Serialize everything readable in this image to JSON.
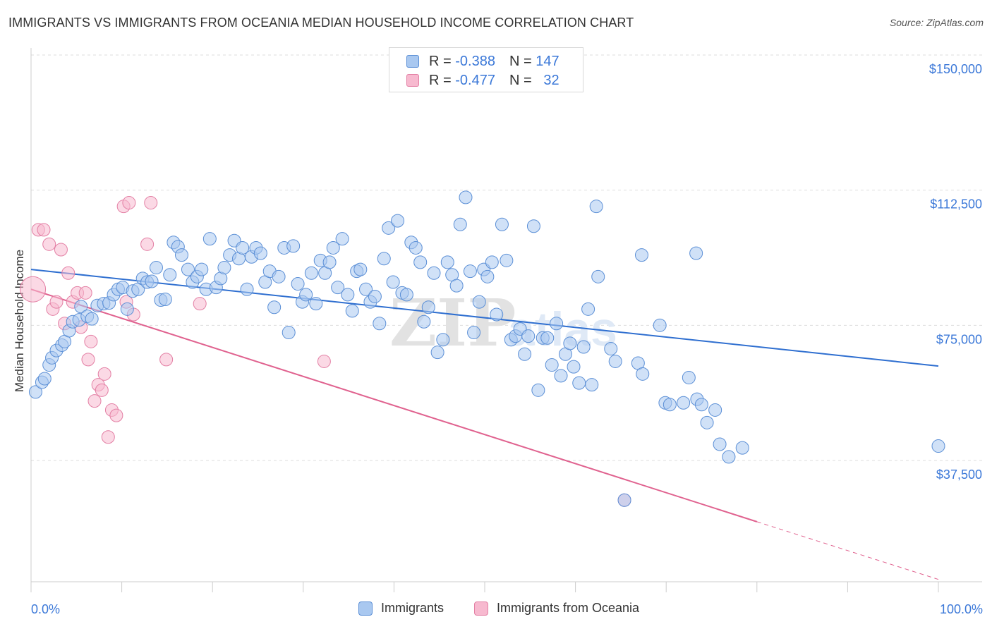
{
  "title": "IMMIGRANTS VS IMMIGRANTS FROM OCEANIA MEDIAN HOUSEHOLD INCOME CORRELATION CHART",
  "source": "Source: ZipAtlas.com",
  "watermark": "ZIPatlas",
  "colors": {
    "blue_fill": "#a9c8f0",
    "blue_stroke": "#5b8fd6",
    "blue_line": "#2f6fd0",
    "pink_fill": "#f7b9cf",
    "pink_stroke": "#e37fa4",
    "pink_line": "#e0628f",
    "axis_label": "#3b78d8",
    "grid": "#dddddd"
  },
  "legend_top": [
    {
      "swatch": "blue",
      "r_label": "R =",
      "r_value": "-0.388",
      "n_label": "N =",
      "n_value": "147"
    },
    {
      "swatch": "pink",
      "r_label": "R =",
      "r_value": "-0.477",
      "n_label": "N =",
      "n_value": "32"
    }
  ],
  "legend_bottom": [
    {
      "swatch": "blue",
      "label": "Immigrants"
    },
    {
      "swatch": "pink",
      "label": "Immigrants from Oceania"
    }
  ],
  "chart_data": {
    "type": "scatter",
    "title": "IMMIGRANTS VS IMMIGRANTS FROM OCEANIA MEDIAN HOUSEHOLD INCOME CORRELATION CHART",
    "xlabel": "",
    "ylabel": "Median Household Income",
    "xlim": [
      0,
      100
    ],
    "ylim": [
      10000,
      155000
    ],
    "x_tick_labels": [
      "0.0%",
      "100.0%"
    ],
    "y_ticks": [
      37500,
      75000,
      112500,
      150000
    ],
    "y_tick_labels": [
      "$37,500",
      "$75,000",
      "$112,500",
      "$150,000"
    ],
    "grid": "horizontal dashed",
    "legend_placement": "top-center and bottom",
    "series": [
      {
        "name": "Immigrants",
        "color": "blue",
        "trend": {
          "x": [
            0,
            100
          ],
          "y": [
            90500,
            63700
          ]
        },
        "points": [
          [
            0.5,
            56500
          ],
          [
            1.2,
            59200
          ],
          [
            1.5,
            60200
          ],
          [
            2.0,
            64000
          ],
          [
            2.3,
            66000
          ],
          [
            2.8,
            68000
          ],
          [
            3.4,
            69500
          ],
          [
            3.7,
            70500
          ],
          [
            4.2,
            73500
          ],
          [
            4.6,
            76000
          ],
          [
            5.3,
            76500
          ],
          [
            5.5,
            80200
          ],
          [
            6.2,
            77500
          ],
          [
            6.7,
            76800
          ],
          [
            7.3,
            80500
          ],
          [
            8.0,
            81000
          ],
          [
            8.6,
            81200
          ],
          [
            9.1,
            83500
          ],
          [
            9.6,
            85000
          ],
          [
            10.1,
            85500
          ],
          [
            10.6,
            79500
          ],
          [
            11.2,
            84500
          ],
          [
            11.8,
            85000
          ],
          [
            12.3,
            88000
          ],
          [
            12.8,
            87000
          ],
          [
            13.3,
            87200
          ],
          [
            13.8,
            91000
          ],
          [
            14.3,
            82000
          ],
          [
            14.8,
            82200
          ],
          [
            15.3,
            89000
          ],
          [
            15.7,
            98000
          ],
          [
            16.2,
            96800
          ],
          [
            16.6,
            94500
          ],
          [
            17.3,
            90500
          ],
          [
            17.8,
            87000
          ],
          [
            18.3,
            88500
          ],
          [
            18.8,
            90500
          ],
          [
            19.3,
            85000
          ],
          [
            19.7,
            99000
          ],
          [
            20.4,
            85500
          ],
          [
            20.9,
            88000
          ],
          [
            21.3,
            91000
          ],
          [
            21.9,
            94500
          ],
          [
            22.4,
            98500
          ],
          [
            22.9,
            93500
          ],
          [
            23.3,
            96500
          ],
          [
            23.8,
            85000
          ],
          [
            24.3,
            94000
          ],
          [
            24.8,
            96500
          ],
          [
            25.3,
            95000
          ],
          [
            25.8,
            87000
          ],
          [
            26.3,
            90000
          ],
          [
            26.8,
            80000
          ],
          [
            27.3,
            88500
          ],
          [
            27.9,
            96500
          ],
          [
            28.4,
            73000
          ],
          [
            28.9,
            97000
          ],
          [
            29.4,
            86500
          ],
          [
            29.9,
            81500
          ],
          [
            30.3,
            83500
          ],
          [
            30.9,
            89500
          ],
          [
            31.4,
            81000
          ],
          [
            31.9,
            93000
          ],
          [
            32.4,
            89500
          ],
          [
            32.9,
            92500
          ],
          [
            33.3,
            96500
          ],
          [
            33.8,
            85500
          ],
          [
            34.3,
            99000
          ],
          [
            34.9,
            83500
          ],
          [
            35.4,
            79000
          ],
          [
            35.9,
            90000
          ],
          [
            36.3,
            90500
          ],
          [
            36.9,
            85000
          ],
          [
            37.4,
            81500
          ],
          [
            37.9,
            83000
          ],
          [
            38.4,
            75500
          ],
          [
            38.9,
            93500
          ],
          [
            39.4,
            102000
          ],
          [
            39.9,
            87000
          ],
          [
            40.4,
            104000
          ],
          [
            40.9,
            84000
          ],
          [
            41.4,
            83500
          ],
          [
            41.9,
            98000
          ],
          [
            42.4,
            96500
          ],
          [
            42.9,
            92500
          ],
          [
            43.3,
            76000
          ],
          [
            43.8,
            80000
          ],
          [
            44.4,
            89500
          ],
          [
            44.8,
            67500
          ],
          [
            45.4,
            71000
          ],
          [
            45.9,
            92500
          ],
          [
            46.4,
            89000
          ],
          [
            46.9,
            86000
          ],
          [
            47.3,
            103000
          ],
          [
            47.9,
            110500
          ],
          [
            48.4,
            90000
          ],
          [
            48.8,
            73000
          ],
          [
            49.4,
            81500
          ],
          [
            49.9,
            90500
          ],
          [
            50.3,
            88500
          ],
          [
            50.8,
            92500
          ],
          [
            51.3,
            78000
          ],
          [
            51.9,
            103000
          ],
          [
            52.4,
            93000
          ],
          [
            52.9,
            71000
          ],
          [
            53.4,
            72000
          ],
          [
            53.9,
            74000
          ],
          [
            54.4,
            67000
          ],
          [
            54.8,
            72000
          ],
          [
            55.4,
            102500
          ],
          [
            55.9,
            57000
          ],
          [
            56.4,
            71500
          ],
          [
            56.9,
            71500
          ],
          [
            57.4,
            64000
          ],
          [
            57.9,
            75500
          ],
          [
            58.4,
            61000
          ],
          [
            58.9,
            67000
          ],
          [
            59.4,
            70000
          ],
          [
            59.8,
            63500
          ],
          [
            60.4,
            59000
          ],
          [
            60.9,
            69000
          ],
          [
            61.4,
            79500
          ],
          [
            61.8,
            58500
          ],
          [
            62.3,
            108000
          ],
          [
            62.5,
            88500
          ],
          [
            63.9,
            68500
          ],
          [
            64.4,
            65000
          ],
          [
            66.9,
            64500
          ],
          [
            67.4,
            61500
          ],
          [
            69.9,
            53500
          ],
          [
            70.4,
            53000
          ],
          [
            71.9,
            53500
          ],
          [
            72.5,
            60500
          ],
          [
            73.4,
            54500
          ],
          [
            73.9,
            53000
          ],
          [
            74.5,
            48000
          ],
          [
            75.4,
            51500
          ],
          [
            75.9,
            42000
          ],
          [
            76.9,
            38500
          ],
          [
            78.4,
            41000
          ],
          [
            73.3,
            95000
          ],
          [
            67.3,
            94500
          ],
          [
            69.3,
            75000
          ],
          [
            100.0,
            41500
          ],
          [
            65.4,
            26500
          ]
        ]
      },
      {
        "name": "Immigrants from Oceania",
        "color": "pink",
        "trend": {
          "x": [
            0,
            80
          ],
          "y": [
            85000,
            20500
          ]
        },
        "trend_dashed": {
          "x": [
            80,
            100
          ],
          "y": [
            20500,
            4500
          ]
        },
        "points": [
          [
            0.2,
            85000
          ],
          [
            0.8,
            101500
          ],
          [
            1.4,
            101500
          ],
          [
            2.0,
            97500
          ],
          [
            2.4,
            79500
          ],
          [
            2.8,
            81500
          ],
          [
            3.3,
            96000
          ],
          [
            3.7,
            75500
          ],
          [
            4.1,
            89500
          ],
          [
            4.6,
            81500
          ],
          [
            5.1,
            84000
          ],
          [
            5.5,
            74500
          ],
          [
            6.0,
            84000
          ],
          [
            6.3,
            65500
          ],
          [
            6.6,
            70500
          ],
          [
            7.0,
            54000
          ],
          [
            7.4,
            58500
          ],
          [
            7.8,
            57000
          ],
          [
            8.1,
            61500
          ],
          [
            8.5,
            44000
          ],
          [
            8.9,
            51500
          ],
          [
            9.4,
            50000
          ],
          [
            10.2,
            108000
          ],
          [
            10.5,
            81500
          ],
          [
            10.8,
            109000
          ],
          [
            11.3,
            78000
          ],
          [
            12.8,
            97500
          ],
          [
            13.2,
            109000
          ],
          [
            14.9,
            65500
          ],
          [
            18.6,
            81000
          ],
          [
            32.3,
            65000
          ],
          [
            65.4,
            26500
          ]
        ]
      }
    ]
  }
}
